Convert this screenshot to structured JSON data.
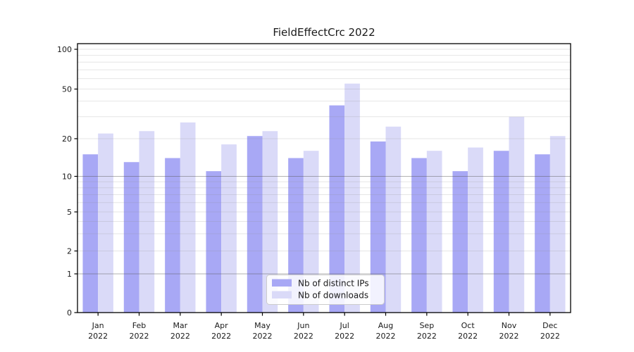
{
  "chart_data": {
    "type": "bar",
    "title": "FieldEffectCrc 2022",
    "categories": [
      "Jan",
      "Feb",
      "Mar",
      "Apr",
      "May",
      "Jun",
      "Jul",
      "Aug",
      "Sep",
      "Oct",
      "Nov",
      "Dec"
    ],
    "x_year_label": "2022",
    "series": [
      {
        "name": "Nb of distinct IPs",
        "color": "#a8a8f5",
        "values": [
          15,
          13,
          14,
          11,
          21,
          14,
          37,
          19,
          14,
          11,
          16,
          15
        ]
      },
      {
        "name": "Nb of downloads",
        "color": "#dadaf8",
        "values": [
          22,
          23,
          27,
          18,
          23,
          16,
          55,
          25,
          16,
          17,
          30,
          21
        ]
      }
    ],
    "yscale": "symlog",
    "ylim": [
      0,
      100
    ],
    "yticks": [
      0,
      1,
      2,
      5,
      10,
      20,
      50,
      100
    ],
    "major_gridlines": [
      1,
      10
    ],
    "minor_gridlines": [
      2,
      3,
      4,
      5,
      6,
      7,
      8,
      9,
      20,
      30,
      40,
      50,
      60,
      70,
      80,
      90,
      100
    ],
    "grid": true,
    "legend_position": "lower center",
    "colors": {
      "spine": "#000000",
      "tick_text": "#1a1a1a",
      "minor_grid": "#8c8c8c",
      "major_grid": "#555555",
      "legend_border": "#cccccc",
      "legend_bg": "#ffffff"
    }
  }
}
